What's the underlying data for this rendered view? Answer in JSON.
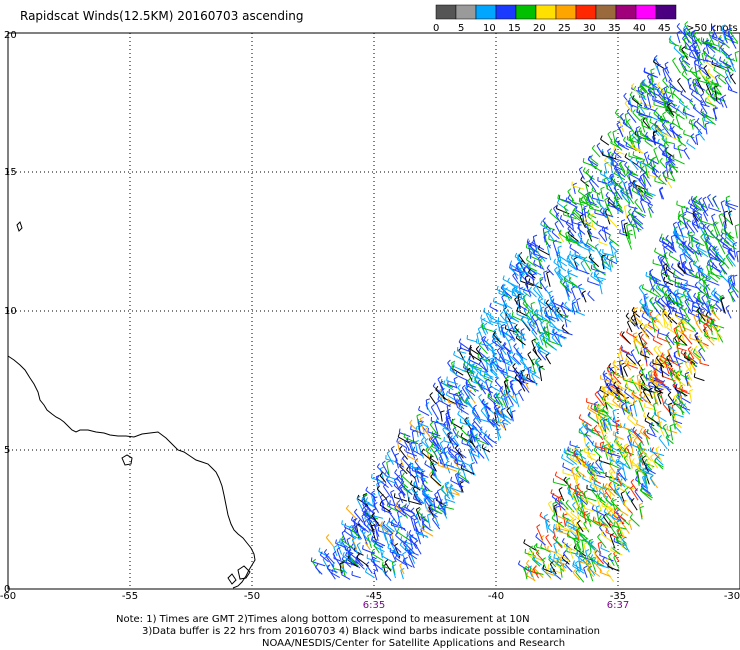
{
  "title": "Rapidscat Winds(12.5KM) 20160703 ascending",
  "legend": {
    "colors": [
      "#555555",
      "#9a9a9a",
      "#00a6ff",
      "#1a3aff",
      "#00c000",
      "#ffe000",
      "#ffa500",
      "#ff2800",
      "#9b6a3c",
      "#a0007a",
      "#ff00ff",
      "#4b0082"
    ],
    "labels": [
      "0",
      "5",
      "10",
      "15",
      "20",
      "25",
      "30",
      "35",
      "40",
      "45",
      ">50 knots"
    ]
  },
  "axes": {
    "x_ticks": [
      "-60",
      "-55",
      "-50",
      "-45",
      "-40",
      "-35",
      "-30"
    ],
    "y_ticks": [
      "0",
      "5",
      "10",
      "15",
      "20"
    ],
    "x_range": [
      -60,
      -30
    ],
    "y_range": [
      0,
      20
    ]
  },
  "swath_times": [
    {
      "label": "6:35",
      "lon": -45
    },
    {
      "label": "6:37",
      "lon": -35
    }
  ],
  "note": {
    "line1": "Note: 1) Times are GMT 2)Times along bottom correspond to measurement at 10N",
    "line2": "3)Data buffer is 22 hrs from 20160703 4) Black wind barbs indicate possible contamination",
    "line3": "NOAA/NESDIS/Center for Satellite Applications and Research"
  },
  "chart_data": {
    "type": "map",
    "title": "Rapidscat Winds(12.5KM) 20160703 ascending",
    "xlim": [
      -60,
      -30
    ],
    "ylim": [
      0,
      20
    ],
    "grid": true,
    "swaths": [
      {
        "pass_time": "6:35",
        "bottom_lon": -45,
        "top_lon": -30.5,
        "bottom_lat": 0,
        "top_lat": 20,
        "dominant_speed_knots": "5-20"
      },
      {
        "pass_time": "6:37",
        "bottom_lon": -36.5,
        "top_lon": -30,
        "bottom_lat": 0,
        "top_lat": 13.8,
        "dominant_speed_knots": "10-35"
      }
    ]
  }
}
